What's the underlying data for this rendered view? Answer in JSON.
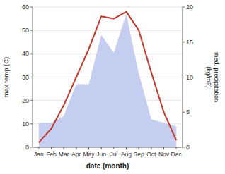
{
  "chart_data": {
    "type": "line",
    "categories": [
      "Jan",
      "Feb",
      "Mar",
      "Apr",
      "May",
      "Jun",
      "Jul",
      "Aug",
      "Sep",
      "Oct",
      "Nov",
      "Dec"
    ],
    "xlabel": "date (month)",
    "ylabel": "max temp (C)",
    "y2label": "med. precipitation\n(kg/m2)",
    "ylim": [
      0,
      60
    ],
    "yticks": [
      0,
      10,
      20,
      30,
      40,
      50,
      60
    ],
    "y2lim": [
      0,
      20
    ],
    "y2ticks": [
      0,
      5,
      10,
      15,
      20
    ],
    "grid": true,
    "series": [
      {
        "type": "area",
        "axis": "y2",
        "color": "#c5cef0",
        "values": [
          3.5,
          3.5,
          4.5,
          9,
          9,
          16,
          13.5,
          19,
          10.5,
          4,
          3.5,
          3
        ]
      },
      {
        "type": "line",
        "color": "#c0392b",
        "values": [
          2,
          8,
          18,
          30,
          42,
          56,
          55,
          58,
          50,
          32,
          15,
          3
        ]
      }
    ]
  }
}
